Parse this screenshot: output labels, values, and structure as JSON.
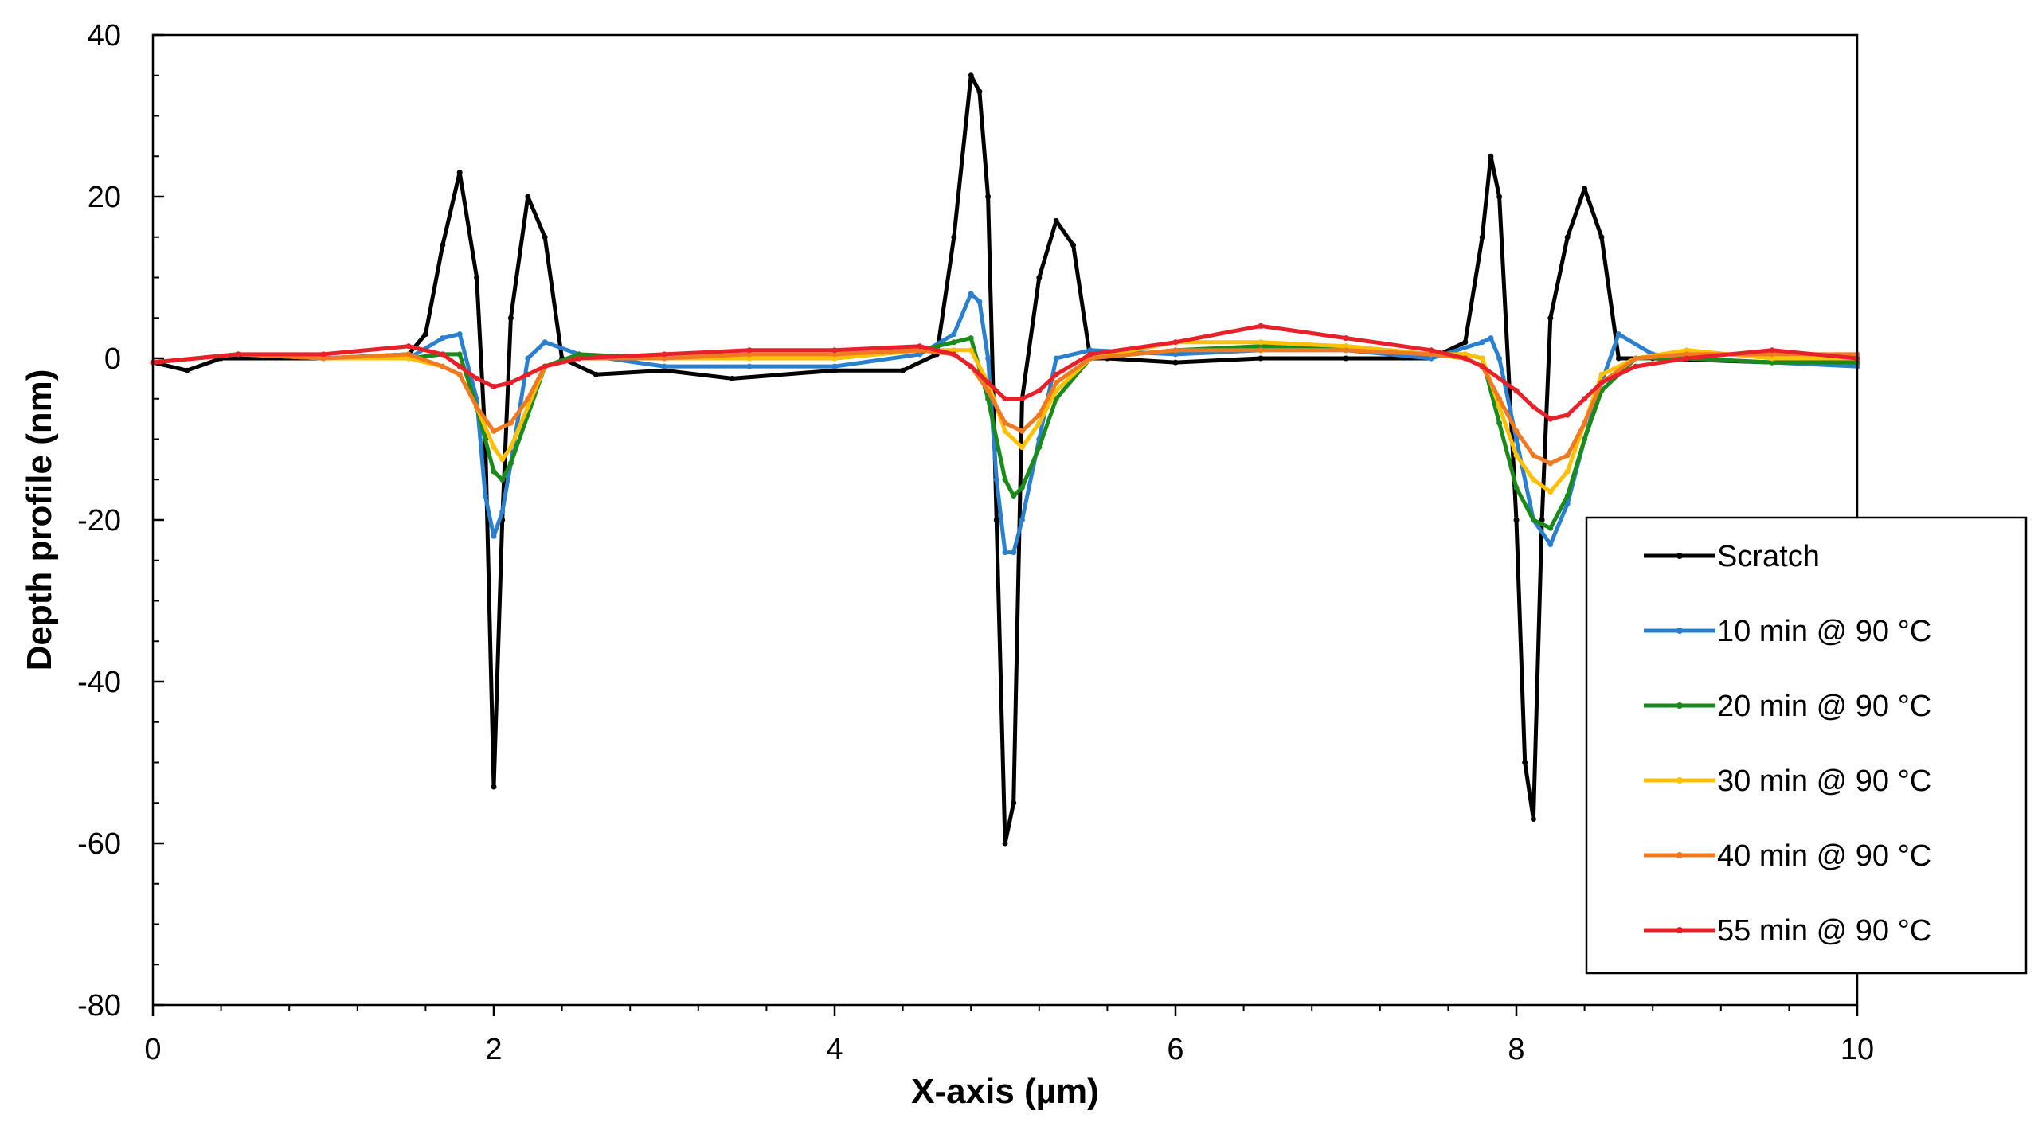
{
  "chart_data": {
    "type": "line",
    "xlabel": "X-axis (µm)",
    "ylabel": "Depth profile (nm)",
    "xlim": [
      0,
      10
    ],
    "ylim": [
      -80,
      40
    ],
    "x_ticks": [
      0,
      2,
      4,
      6,
      8,
      10
    ],
    "x_tick_labels": [
      "0",
      "2",
      "4",
      "6",
      "8",
      "10"
    ],
    "y_ticks": [
      40,
      20,
      0,
      -20,
      -40,
      -60,
      -80
    ],
    "y_tick_labels": [
      "40",
      "20",
      "0",
      "-20",
      "-40",
      "-60",
      "-80"
    ],
    "grid": false,
    "legend_position": "right",
    "series": [
      {
        "name": "Scratch",
        "color": "#000000",
        "x": [
          0,
          0.2,
          0.4,
          1.0,
          1.5,
          1.6,
          1.7,
          1.8,
          1.9,
          1.95,
          2.0,
          2.05,
          2.1,
          2.2,
          2.3,
          2.4,
          2.6,
          3.0,
          3.4,
          4.0,
          4.4,
          4.6,
          4.7,
          4.8,
          4.85,
          4.9,
          4.95,
          5.0,
          5.05,
          5.1,
          5.2,
          5.3,
          5.4,
          5.5,
          5.6,
          6.0,
          6.5,
          7.0,
          7.5,
          7.7,
          7.8,
          7.85,
          7.9,
          8.0,
          8.05,
          8.1,
          8.15,
          8.2,
          8.3,
          8.4,
          8.5,
          8.6,
          8.8,
          9.5,
          10.0
        ],
        "y": [
          -0.5,
          -1.5,
          0,
          0,
          0.5,
          3,
          14,
          23,
          10,
          -10,
          -53,
          -20,
          5,
          20,
          15,
          0,
          -2,
          -1.5,
          -2.5,
          -1.5,
          -1.5,
          0.5,
          15,
          35,
          33,
          20,
          -20,
          -60,
          -55,
          -5,
          10,
          17,
          14,
          0,
          0,
          -0.5,
          0,
          0,
          0,
          2,
          15,
          25,
          20,
          -20,
          -50,
          -57,
          -20,
          5,
          15,
          21,
          15,
          0,
          0,
          -0.5,
          -0.5
        ]
      },
      {
        "name": "10 min @ 90 °C",
        "color": "#2b7fcf",
        "x": [
          0,
          0.5,
          1.0,
          1.5,
          1.7,
          1.8,
          1.9,
          1.95,
          2.0,
          2.05,
          2.1,
          2.2,
          2.3,
          2.5,
          3.0,
          3.5,
          4.0,
          4.5,
          4.7,
          4.8,
          4.85,
          4.9,
          4.95,
          5.0,
          5.05,
          5.1,
          5.2,
          5.3,
          5.5,
          6.0,
          6.5,
          7.0,
          7.5,
          7.8,
          7.85,
          7.9,
          8.0,
          8.1,
          8.2,
          8.3,
          8.4,
          8.5,
          8.6,
          8.8,
          9.0,
          9.5,
          10.0
        ],
        "y": [
          -0.5,
          0.5,
          0,
          0,
          2.5,
          3,
          -5,
          -17,
          -22,
          -19,
          -13,
          0,
          2,
          0.5,
          -1,
          -1,
          -1,
          0.5,
          3,
          8,
          7,
          0,
          -15,
          -24,
          -24,
          -20,
          -10,
          0,
          1,
          0.5,
          1,
          1,
          0,
          2,
          2.5,
          0,
          -10,
          -20,
          -23,
          -18,
          -10,
          -3,
          3,
          0.5,
          0,
          -0.5,
          -1
        ]
      },
      {
        "name": "20 min @ 90 °C",
        "color": "#1a8a1a",
        "x": [
          0,
          0.5,
          1.0,
          1.5,
          1.7,
          1.8,
          1.9,
          2.0,
          2.05,
          2.1,
          2.2,
          2.3,
          2.5,
          3.0,
          3.5,
          4.0,
          4.5,
          4.7,
          4.8,
          4.9,
          5.0,
          5.05,
          5.1,
          5.2,
          5.3,
          5.5,
          6.0,
          6.5,
          7.0,
          7.5,
          7.7,
          7.8,
          7.9,
          8.0,
          8.1,
          8.2,
          8.3,
          8.4,
          8.5,
          8.7,
          9.0,
          9.5,
          10.0
        ],
        "y": [
          -0.5,
          0.5,
          0,
          0,
          0.5,
          0.5,
          -6,
          -14,
          -15,
          -13,
          -7,
          -1,
          0.5,
          0,
          0,
          0,
          1,
          2,
          2.5,
          -5,
          -15,
          -17,
          -16,
          -11,
          -5,
          0,
          1,
          1.5,
          1.5,
          0.5,
          0.5,
          0,
          -8,
          -16,
          -20,
          -21,
          -17,
          -10,
          -4,
          0,
          0,
          -0.5,
          -0.5
        ]
      },
      {
        "name": "30 min @ 90 °C",
        "color": "#ffc000",
        "x": [
          0,
          0.5,
          1.0,
          1.5,
          1.7,
          1.8,
          1.9,
          2.0,
          2.05,
          2.1,
          2.2,
          2.3,
          2.5,
          3.0,
          3.5,
          4.0,
          4.5,
          4.7,
          4.8,
          4.9,
          5.0,
          5.1,
          5.2,
          5.3,
          5.5,
          6.0,
          6.5,
          7.0,
          7.5,
          7.7,
          7.8,
          7.9,
          8.0,
          8.1,
          8.2,
          8.3,
          8.4,
          8.5,
          8.7,
          9.0,
          9.5,
          10.0
        ],
        "y": [
          -0.5,
          0.5,
          0,
          0,
          -1,
          -2,
          -6,
          -11,
          -12.5,
          -11,
          -6,
          -1,
          0,
          0,
          0,
          0,
          1,
          1,
          1,
          -3,
          -9,
          -11,
          -8,
          -4,
          0,
          2,
          2,
          1.5,
          0.5,
          0.5,
          0,
          -6,
          -12,
          -15,
          -16.5,
          -14,
          -8,
          -2,
          0,
          1,
          0,
          0
        ]
      },
      {
        "name": "40 min @ 90 °C",
        "color": "#f07a22",
        "x": [
          0,
          0.5,
          1.0,
          1.5,
          1.7,
          1.8,
          1.9,
          2.0,
          2.1,
          2.2,
          2.3,
          2.5,
          3.0,
          3.5,
          4.0,
          4.5,
          4.7,
          4.8,
          4.9,
          5.0,
          5.1,
          5.2,
          5.3,
          5.5,
          6.0,
          6.5,
          7.0,
          7.5,
          7.7,
          7.8,
          7.9,
          8.0,
          8.1,
          8.2,
          8.3,
          8.4,
          8.5,
          8.7,
          9.0,
          9.5,
          10.0
        ],
        "y": [
          -0.5,
          0.5,
          0,
          0.5,
          -1,
          -2,
          -6,
          -9,
          -8,
          -5,
          -1,
          0,
          0,
          0.5,
          0.5,
          1,
          0.5,
          -1,
          -4,
          -8,
          -9,
          -7,
          -3,
          0,
          1,
          1,
          1,
          0.5,
          0,
          -1,
          -5,
          -9,
          -12,
          -13,
          -12,
          -8,
          -3,
          0,
          0.5,
          0.5,
          0.5
        ]
      },
      {
        "name": "55 min @ 90 °C",
        "color": "#e8202a",
        "x": [
          0,
          0.5,
          1.0,
          1.5,
          1.7,
          1.8,
          1.9,
          2.0,
          2.1,
          2.2,
          2.3,
          2.5,
          3.0,
          3.5,
          4.0,
          4.5,
          4.7,
          4.8,
          4.9,
          5.0,
          5.1,
          5.2,
          5.3,
          5.5,
          6.0,
          6.5,
          7.0,
          7.5,
          7.7,
          7.8,
          8.0,
          8.1,
          8.2,
          8.3,
          8.4,
          8.5,
          8.7,
          9.0,
          9.5,
          10.0
        ],
        "y": [
          -0.5,
          0.5,
          0.5,
          1.5,
          0.5,
          -1,
          -2.5,
          -3.5,
          -3,
          -2,
          -1,
          0,
          0.5,
          1,
          1,
          1.5,
          0.5,
          -1,
          -3,
          -5,
          -5,
          -4,
          -2,
          0.5,
          2,
          4,
          2.5,
          1,
          0,
          -1,
          -4,
          -6,
          -7.5,
          -7,
          -5,
          -3,
          -1,
          0,
          1,
          0
        ]
      }
    ]
  }
}
